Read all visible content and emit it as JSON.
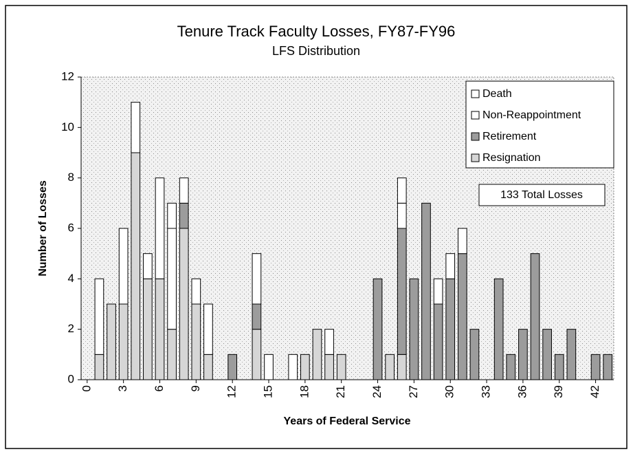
{
  "chart_data": {
    "type": "stacked_bar",
    "title": "Tenure Track Faculty Losses, FY87-FY96",
    "subtitle": "LFS Distribution",
    "x_label": "Years of Federal Service",
    "y_label": "Number of Losses",
    "annotation": "133 Total Losses",
    "legend": "top-right",
    "grid": false,
    "categories": [
      0,
      null,
      null,
      3,
      null,
      null,
      6,
      null,
      null,
      9,
      null,
      null,
      12,
      null,
      null,
      15,
      null,
      null,
      18,
      null,
      null,
      21,
      null,
      null,
      24,
      null,
      null,
      27,
      null,
      null,
      30,
      null,
      null,
      33,
      null,
      null,
      36,
      null,
      null,
      39,
      null,
      null,
      42,
      null
    ],
    "ylim": [
      0,
      12
    ],
    "yticks": [
      0,
      2,
      4,
      6,
      8,
      10,
      12
    ],
    "series": [
      {
        "name": "Resignation",
        "color": "#d6d6d6",
        "values": [
          0,
          1,
          3,
          3,
          9,
          4,
          4,
          2,
          6,
          3,
          1,
          0,
          0,
          0,
          2,
          0,
          0,
          0,
          1,
          2,
          1,
          1,
          0,
          0,
          0,
          1,
          1,
          0,
          0,
          0,
          0,
          0,
          0,
          0,
          0,
          0,
          0,
          0,
          0,
          0,
          0,
          0,
          0,
          0
        ]
      },
      {
        "name": "Retirement",
        "color": "#9c9c9c",
        "values": [
          0,
          0,
          0,
          0,
          0,
          0,
          0,
          0,
          1,
          0,
          0,
          0,
          1,
          0,
          1,
          0,
          0,
          0,
          0,
          0,
          0,
          0,
          0,
          0,
          4,
          0,
          5,
          4,
          7,
          3,
          4,
          5,
          2,
          0,
          4,
          1,
          2,
          5,
          2,
          1,
          2,
          0,
          1,
          1
        ]
      },
      {
        "name": "Non-Reappointment",
        "color": "#ffffff",
        "values": [
          0,
          3,
          0,
          3,
          2,
          1,
          4,
          4,
          1,
          1,
          2,
          0,
          0,
          0,
          2,
          1,
          0,
          1,
          0,
          0,
          1,
          0,
          0,
          0,
          0,
          0,
          1,
          0,
          0,
          1,
          1,
          1,
          0,
          0,
          0,
          0,
          0,
          0,
          0,
          0,
          0,
          0,
          0,
          0
        ]
      },
      {
        "name": "Death",
        "color": "#ffffff",
        "values": [
          0,
          0,
          0,
          0,
          0,
          0,
          0,
          1,
          0,
          0,
          0,
          0,
          0,
          0,
          0,
          0,
          0,
          0,
          0,
          0,
          0,
          0,
          0,
          0,
          0,
          0,
          1,
          0,
          0,
          0,
          0,
          0,
          0,
          0,
          0,
          0,
          0,
          0,
          0,
          0,
          0,
          0,
          0,
          0
        ]
      }
    ]
  }
}
